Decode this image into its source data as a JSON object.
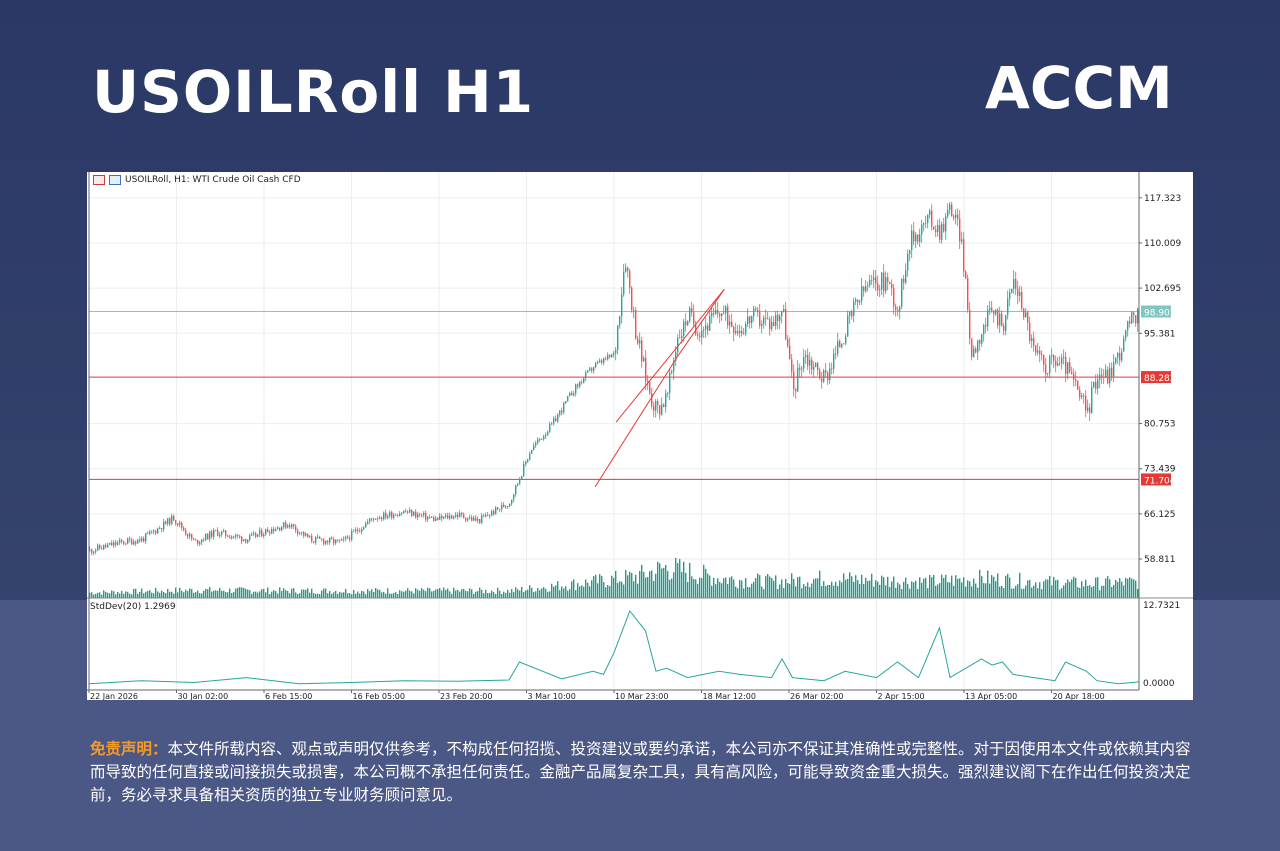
{
  "header": {
    "title": "USOILRoll H1",
    "logo_text": "ACCM",
    "logo_accent_color": "#f07c1e"
  },
  "chart_header": {
    "symbol_text": "USOILRoll, H1:  WTI Crude Oil Cash CFD"
  },
  "indicator": {
    "label": "StdDev(20) 1.2969",
    "axis_top": "12.7321",
    "axis_bottom": "0.0000"
  },
  "chart_data": {
    "type": "line",
    "symbol": "USOILRoll",
    "timeframe": "H1",
    "y_axis_ticks": [
      "117.323",
      "110.009",
      "102.695",
      "95.381",
      "80.753",
      "73.439",
      "66.125",
      "58.811"
    ],
    "ylim": [
      52.5,
      121.5
    ],
    "x_axis_ticks": [
      "22 Jan 2026",
      "30 Jan 02:00",
      "6 Feb 15:00",
      "16 Feb 05:00",
      "23 Feb 20:00",
      "3 Mar 10:00",
      "10 Mar 23:00",
      "18 Mar 12:00",
      "26 Mar 02:00",
      "2 Apr 15:00",
      "13 Apr 05:00",
      "20 Apr 18:00"
    ],
    "price_series": {
      "x": [
        0,
        3,
        5,
        8,
        10,
        12,
        15,
        17,
        19,
        21,
        24,
        27,
        30,
        33,
        35,
        37,
        40,
        42,
        44,
        46,
        48,
        50,
        51,
        52,
        53,
        53.5,
        54,
        55,
        56,
        56.5,
        57,
        58,
        59,
        60,
        62,
        63,
        65,
        66,
        67,
        68,
        69,
        70,
        71,
        72,
        73,
        74,
        76,
        77,
        78,
        80,
        81,
        82,
        83,
        84,
        85,
        86,
        87,
        88,
        89,
        90,
        91,
        92,
        93,
        95,
        96,
        97,
        98,
        98.5,
        99,
        100
      ],
      "values": [
        60.2,
        61.5,
        62.0,
        65.5,
        61.5,
        63.2,
        62.0,
        63.5,
        64.5,
        62.0,
        61.5,
        65.5,
        66.5,
        65.2,
        66.0,
        65.0,
        68.0,
        76.5,
        80.5,
        86.0,
        90.0,
        92.0,
        108.0,
        96.0,
        88.0,
        85.0,
        83.0,
        85.0,
        95.0,
        96.0,
        98.5,
        96.0,
        97.0,
        99.0,
        96.0,
        98.0,
        97.0,
        99.5,
        86.0,
        92.0,
        90.0,
        88.0,
        92.0,
        96.0,
        100.0,
        103.0,
        104.0,
        99.0,
        110.0,
        114.0,
        112.0,
        116.0,
        111.0,
        92.0,
        96.0,
        99.0,
        97.0,
        104.0,
        99.0,
        92.0,
        90.0,
        91.0,
        90.0,
        82.5,
        89.0,
        88.5,
        92.0,
        94.0,
        97.0,
        98.5
      ]
    },
    "current_price": "98.905",
    "horizontal_lines": [
      {
        "label": "88.282",
        "value": 88.282
      },
      {
        "label": "71.704",
        "value": 71.704
      }
    ],
    "trendlines": [
      {
        "from": [
          48.2,
          70.5
        ],
        "to": [
          56.0,
          91.5
        ]
      },
      {
        "from": [
          56.0,
          91.5
        ],
        "to": [
          60.5,
          102.5
        ]
      },
      {
        "from": [
          50.2,
          81.0
        ],
        "to": [
          60.5,
          102.5
        ]
      }
    ],
    "volume_relative": [
      [
        0,
        0.15
      ],
      [
        10,
        0.22
      ],
      [
        20,
        0.2
      ],
      [
        30,
        0.2
      ],
      [
        40,
        0.2
      ],
      [
        48,
        0.45
      ],
      [
        52,
        0.6
      ],
      [
        55,
        0.85
      ],
      [
        60,
        0.55
      ],
      [
        65,
        0.45
      ],
      [
        70,
        0.55
      ],
      [
        75,
        0.5
      ],
      [
        80,
        0.45
      ],
      [
        85,
        0.55
      ],
      [
        90,
        0.45
      ],
      [
        95,
        0.4
      ],
      [
        100,
        0.45
      ]
    ],
    "stddev_series": {
      "x": [
        0,
        5,
        10,
        15,
        20,
        25,
        30,
        35,
        40,
        41,
        45,
        48,
        49,
        50,
        51.5,
        53,
        54,
        55,
        57,
        60,
        62,
        65,
        66,
        67,
        70,
        72,
        75,
        77,
        79,
        80,
        81,
        82,
        85,
        86,
        87,
        88,
        90,
        92,
        93,
        95,
        96,
        98,
        100
      ],
      "values": [
        1.0,
        1.5,
        1.2,
        2.0,
        1.0,
        1.2,
        1.5,
        1.4,
        1.6,
        4.5,
        1.8,
        3.0,
        2.5,
        6.0,
        12.7,
        9.5,
        3.0,
        3.5,
        2.0,
        3.0,
        2.5,
        2.0,
        5.0,
        2.0,
        1.5,
        3.0,
        2.0,
        4.5,
        2.0,
        6.0,
        10.0,
        2.0,
        5.0,
        4.0,
        4.5,
        2.5,
        2.0,
        1.5,
        4.5,
        3.0,
        1.5,
        1.0,
        1.3
      ]
    },
    "line_colors": {
      "price_up": "#26a69a",
      "price_down": "#ef5350",
      "horizontal_line": "#e53935",
      "current_price_line": "#7fc7c0",
      "volume": "#26998b",
      "stddev": "#26a69a"
    },
    "grid": true
  },
  "disclaimer": {
    "lead": "免责声明：",
    "body": "本文件所载内容、观点或声明仅供参考，不构成任何招揽、投资建议或要约承诺，本公司亦不保证其准确性或完整性。对于因使用本文件或依赖其内容而导致的任何直接或间接损失或损害，本公司概不承担任何责任。金融产品属复杂工具，具有高风险，可能导致资金重大损失。强烈建议阁下在作出任何投资决定前，务必寻求具备相关资质的独立专业财务顾问意见。"
  }
}
